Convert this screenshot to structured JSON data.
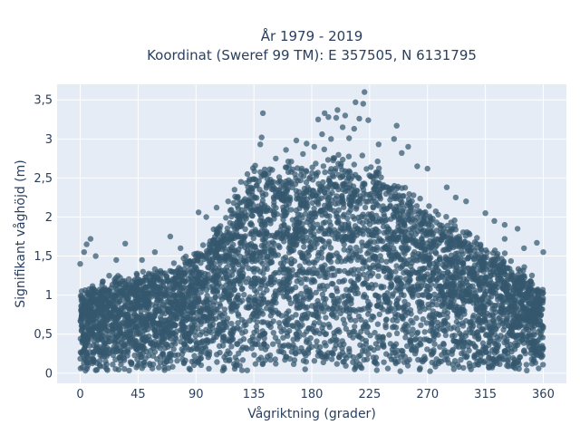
{
  "chart_data": {
    "type": "scatter",
    "title_lines": [
      "År 1979 - 2019",
      "Koordinat (Sweref 99 TM): E 357505, N 6131795"
    ],
    "xlabel": "Vågriktning (grader)",
    "ylabel": "Signifikant våghöjd (m)",
    "xlim": [
      -18,
      378
    ],
    "ylim": [
      -0.13,
      3.7
    ],
    "x_ticks": [
      0,
      45,
      90,
      135,
      180,
      225,
      270,
      315,
      360
    ],
    "x_tick_labels": [
      "0",
      "45",
      "90",
      "135",
      "180",
      "225",
      "270",
      "315",
      "360"
    ],
    "y_ticks": [
      0,
      0.5,
      1,
      1.5,
      2,
      2.5,
      3,
      3.5
    ],
    "y_tick_labels": [
      "0",
      "0,5",
      "1",
      "1,5",
      "2",
      "2,5",
      "3",
      "3,5"
    ],
    "grid": true,
    "marker_color": "#34586e",
    "plot_background": "#e5ecf6",
    "envelope": {
      "description": "Dense mass of observations; values give approximate upper limit of main cloud by direction",
      "x": [
        0,
        20,
        45,
        70,
        90,
        110,
        125,
        135,
        150,
        170,
        190,
        210,
        225,
        240,
        260,
        280,
        300,
        315,
        330,
        345,
        360
      ],
      "y": [
        1.0,
        1.15,
        1.2,
        1.3,
        1.45,
        1.85,
        2.3,
        2.55,
        2.55,
        2.6,
        2.7,
        2.65,
        2.6,
        2.4,
        2.2,
        1.95,
        1.75,
        1.55,
        1.45,
        1.25,
        1.0
      ]
    },
    "outliers": [
      {
        "x": 221,
        "y": 3.6
      },
      {
        "x": 214,
        "y": 3.47
      },
      {
        "x": 220,
        "y": 3.45
      },
      {
        "x": 200,
        "y": 3.37
      },
      {
        "x": 190,
        "y": 3.33
      },
      {
        "x": 142,
        "y": 3.33
      },
      {
        "x": 206,
        "y": 3.3
      },
      {
        "x": 193,
        "y": 3.28
      },
      {
        "x": 217,
        "y": 3.26
      },
      {
        "x": 199,
        "y": 3.27
      },
      {
        "x": 224,
        "y": 3.24
      },
      {
        "x": 185,
        "y": 3.25
      },
      {
        "x": 246,
        "y": 3.17
      },
      {
        "x": 204,
        "y": 3.15
      },
      {
        "x": 213,
        "y": 3.13
      },
      {
        "x": 188,
        "y": 3.06
      },
      {
        "x": 141,
        "y": 3.02
      },
      {
        "x": 195,
        "y": 3.0
      },
      {
        "x": 244,
        "y": 3.0
      },
      {
        "x": 209,
        "y": 3.01
      },
      {
        "x": 168,
        "y": 2.98
      },
      {
        "x": 176,
        "y": 2.94
      },
      {
        "x": 232,
        "y": 2.93
      },
      {
        "x": 255,
        "y": 2.9
      },
      {
        "x": 140,
        "y": 2.93
      },
      {
        "x": 160,
        "y": 2.86
      },
      {
        "x": 250,
        "y": 2.82
      },
      {
        "x": 182,
        "y": 2.9
      },
      {
        "x": 0,
        "y": 1.4
      },
      {
        "x": 5,
        "y": 1.65
      },
      {
        "x": 8,
        "y": 1.72
      },
      {
        "x": 3,
        "y": 1.55
      },
      {
        "x": 12,
        "y": 1.5
      },
      {
        "x": 28,
        "y": 1.45
      },
      {
        "x": 35,
        "y": 1.66
      },
      {
        "x": 48,
        "y": 1.45
      },
      {
        "x": 58,
        "y": 1.55
      },
      {
        "x": 70,
        "y": 1.75
      },
      {
        "x": 78,
        "y": 1.6
      },
      {
        "x": 98,
        "y": 2.0
      },
      {
        "x": 106,
        "y": 2.12
      },
      {
        "x": 92,
        "y": 2.06
      },
      {
        "x": 115,
        "y": 2.2
      },
      {
        "x": 330,
        "y": 1.9
      },
      {
        "x": 340,
        "y": 1.85
      },
      {
        "x": 355,
        "y": 1.67
      },
      {
        "x": 345,
        "y": 1.6
      },
      {
        "x": 360,
        "y": 1.55
      },
      {
        "x": 315,
        "y": 2.05
      },
      {
        "x": 300,
        "y": 2.2
      },
      {
        "x": 285,
        "y": 2.38
      },
      {
        "x": 270,
        "y": 2.62
      },
      {
        "x": 262,
        "y": 2.65
      },
      {
        "x": 292,
        "y": 2.25
      },
      {
        "x": 322,
        "y": 1.95
      },
      {
        "x": 152,
        "y": 2.75
      },
      {
        "x": 130,
        "y": 2.55
      },
      {
        "x": 125,
        "y": 2.45
      },
      {
        "x": 120,
        "y": 2.35
      },
      {
        "x": 330,
        "y": 1.72
      }
    ]
  }
}
